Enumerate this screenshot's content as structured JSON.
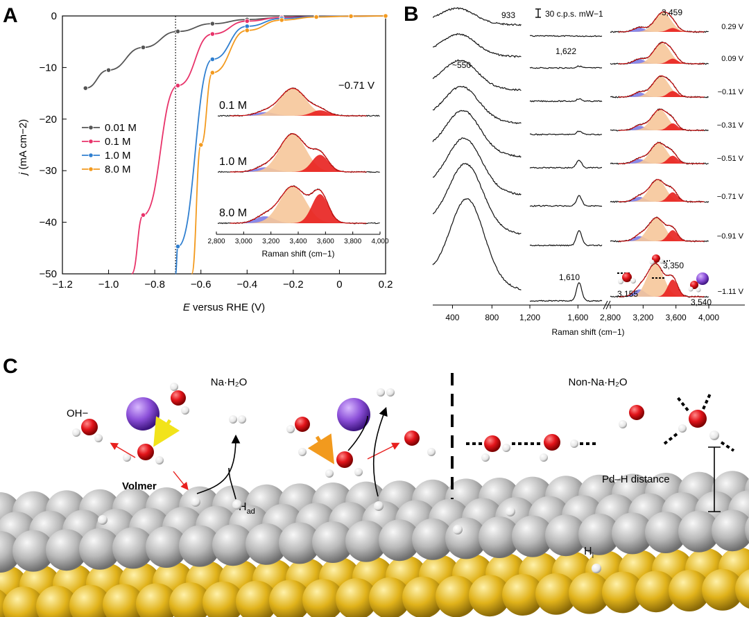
{
  "panels": {
    "a_letter": "A",
    "b_letter": "B",
    "c_letter": "C"
  },
  "colors": {
    "c001": "#555555",
    "c01": "#e8336a",
    "c10": "#2f7fd0",
    "c80": "#f39a1e",
    "blue_peak": "#7c7ce6",
    "orange_peak": "#f6c79a",
    "red_peak": "#e8201e",
    "gold": "#e0b21a",
    "silver": "#bdbdbd",
    "oxygen": "#e2141a",
    "sodium": "#8b4fd8"
  },
  "panel_a": {
    "ylabel_j": "j",
    "ylabel_unit": " (mA cm−2)",
    "xlabel_e": "E",
    "xlabel_rest": " versus RHE (V)",
    "inset": {
      "potential": "−0.71 V",
      "labels": [
        "0.1 M",
        "1.0 M",
        "8.0 M"
      ],
      "xticks": [
        "2,800",
        "3,000",
        "3,200",
        "3,400",
        "3,600",
        "3,800",
        "4,000"
      ],
      "xlabel": "Raman shift (cm−1)"
    }
  },
  "chart_data": [
    {
      "type": "line",
      "title": "",
      "xlabel": "E versus RHE (V)",
      "ylabel": "j (mA cm−2)",
      "xlim": [
        -1.2,
        0.2
      ],
      "ylim": [
        -50,
        0
      ],
      "xticks": [
        "−1.2",
        "−1.0",
        "−0.8",
        "−0.6",
        "−0.4",
        "−0.2",
        "0",
        "0.2"
      ],
      "yticks": [
        "0",
        "−10",
        "−20",
        "−30",
        "−40",
        "−50"
      ],
      "vline_x": -0.71,
      "legend": [
        "0.01 M",
        "0.1 M",
        "1.0 M",
        "8.0 M"
      ],
      "legend_position": "center-left",
      "series": [
        {
          "name": "0.01 M",
          "x": [
            -1.1,
            -1.0,
            -0.85,
            -0.7,
            -0.55,
            -0.4,
            -0.25,
            -0.1,
            0.05,
            0.2
          ],
          "y": [
            -14,
            -10.5,
            -6.1,
            -3.0,
            -1.5,
            -0.7,
            -0.3,
            -0.1,
            -0.05,
            0
          ]
        },
        {
          "name": "0.1 M",
          "x": [
            -0.9,
            -0.85,
            -0.7,
            -0.55,
            -0.4,
            -0.25,
            -0.1,
            0.05,
            0.2
          ],
          "y": [
            -50,
            -38.6,
            -13.5,
            -3.5,
            -1.0,
            -0.3,
            -0.1,
            -0.03,
            0
          ]
        },
        {
          "name": "1.0 M",
          "x": [
            -0.71,
            -0.7,
            -0.55,
            -0.4,
            -0.25,
            -0.1,
            0.05,
            0.2
          ],
          "y": [
            -50,
            -44.7,
            -8.4,
            -2.0,
            -0.5,
            -0.1,
            -0.03,
            0
          ]
        },
        {
          "name": "8.0 M",
          "x": [
            -0.64,
            -0.6,
            -0.55,
            -0.4,
            -0.25,
            -0.1,
            0.05,
            0.2
          ],
          "y": [
            -50,
            -25,
            -11.0,
            -2.8,
            -0.8,
            -0.2,
            -0.05,
            0
          ]
        }
      ]
    },
    {
      "type": "line",
      "title": "",
      "xlabel": "Raman shift (cm−1)",
      "ylabel": "",
      "segments": [
        {
          "xlim": [
            200,
            1100
          ],
          "xticks": [
            "400",
            "800"
          ]
        },
        {
          "xlim": [
            1200,
            1800
          ],
          "xticks": [
            "1,200",
            "1,600"
          ]
        },
        {
          "xlim": [
            2800,
            4000
          ],
          "xticks": [
            "2,800",
            "3,200",
            "3,600",
            "4,000"
          ]
        }
      ],
      "potentials": [
        "0.29 V",
        "0.09 V",
        "−0.11 V",
        "−0.31 V",
        "−0.51 V",
        "−0.71 V",
        "−0.91 V",
        "−1.11 V"
      ],
      "low_peak_center": 550,
      "low_peak_heights": [
        0.28,
        0.38,
        0.5,
        0.62,
        0.78,
        0.96,
        1.2,
        1.55
      ],
      "mid_peak_center": 1610,
      "mid_peak_heights": [
        0.0,
        0.12,
        0.15,
        0.22,
        0.5,
        0.65,
        1.0,
        1.2
      ],
      "oh_components": {
        "blue_center": 3155,
        "orange_center": 3350,
        "red_center": 3540
      },
      "annotations": {
        "peak_933": "933",
        "peak_550": "~550",
        "peak_1622": "1,622",
        "peak_1610": "1,610",
        "peak_3459": "3,459",
        "scale_bar": "30 c.p.s. mW−1",
        "peak_3155": "3,155",
        "peak_3350": "3,350",
        "peak_3540": "3,540"
      }
    }
  ],
  "panel_c": {
    "na_h2o": "Na·H₂O",
    "non_na_h2o": "Non-Na·H₂O",
    "oh_minus": "OH−",
    "volmer": "Volmer",
    "h_ad": "H",
    "h_ad_sub": "ad",
    "pd_h": "Pd–H distance",
    "h_i": "H",
    "h_i_sub": "i"
  }
}
